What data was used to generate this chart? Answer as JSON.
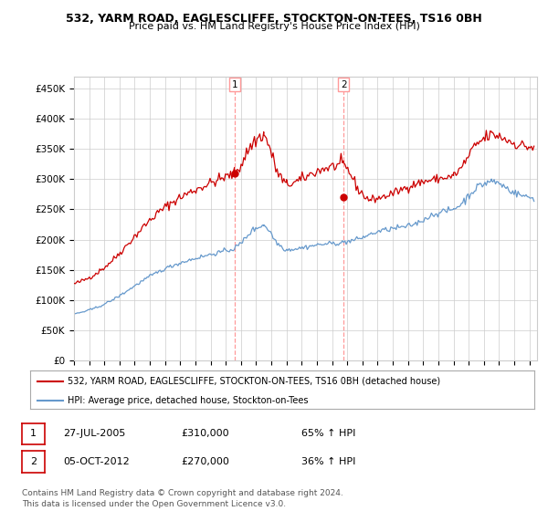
{
  "title": "532, YARM ROAD, EAGLESCLIFFE, STOCKTON-ON-TEES, TS16 0BH",
  "subtitle": "Price paid vs. HM Land Registry's House Price Index (HPI)",
  "ylabel_ticks": [
    "£0",
    "£50K",
    "£100K",
    "£150K",
    "£200K",
    "£250K",
    "£300K",
    "£350K",
    "£400K",
    "£450K"
  ],
  "ytick_vals": [
    0,
    50000,
    100000,
    150000,
    200000,
    250000,
    300000,
    350000,
    400000,
    450000
  ],
  "ylim": [
    0,
    470000
  ],
  "xlim_start": 1995.0,
  "xlim_end": 2025.5,
  "legend_label_red": "532, YARM ROAD, EAGLESCLIFFE, STOCKTON-ON-TEES, TS16 0BH (detached house)",
  "legend_label_blue": "HPI: Average price, detached house, Stockton-on-Tees",
  "marker1_x": 2005.57,
  "marker1_y": 310000,
  "marker1_label": "1",
  "marker2_x": 2012.76,
  "marker2_y": 270000,
  "marker2_label": "2",
  "sale1_date": "27-JUL-2005",
  "sale1_price": "£310,000",
  "sale1_hpi": "65% ↑ HPI",
  "sale2_date": "05-OCT-2012",
  "sale2_price": "£270,000",
  "sale2_hpi": "36% ↑ HPI",
  "footnote": "Contains HM Land Registry data © Crown copyright and database right 2024.\nThis data is licensed under the Open Government Licence v3.0.",
  "red_color": "#cc0000",
  "blue_color": "#6699cc",
  "vline_color": "#ff9999",
  "background_color": "#ffffff",
  "grid_color": "#cccccc"
}
